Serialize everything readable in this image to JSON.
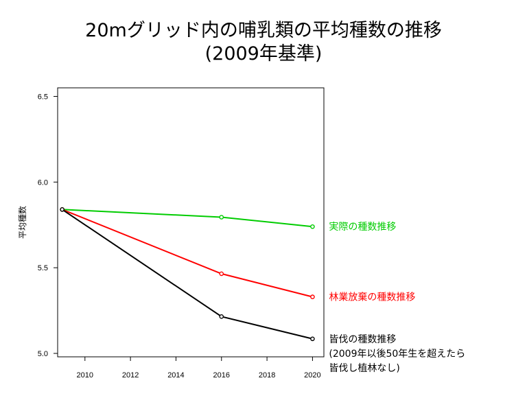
{
  "chart_data": {
    "type": "line",
    "title": "20mグリッド内の哺乳類の平均種数の推移",
    "subtitle": "(2009年基準)",
    "xlabel": "",
    "ylabel": "平均種数",
    "xlim": [
      2008.8,
      2020.5
    ],
    "ylim": [
      4.98,
      6.55
    ],
    "x_ticks": [
      2010,
      2012,
      2014,
      2016,
      2018,
      2020
    ],
    "y_ticks": [
      5.0,
      5.5,
      6.0,
      6.5
    ],
    "grid": false,
    "x": [
      2009,
      2016,
      2020
    ],
    "series": [
      {
        "name": "実際の種数推移",
        "label_lines": [
          "実際の種数推移"
        ],
        "color": "#00cc00",
        "values": [
          5.84,
          5.795,
          5.74
        ]
      },
      {
        "name": "林業放棄の種数推移",
        "label_lines": [
          "林業放棄の種数推移"
        ],
        "color": "#ff0000",
        "values": [
          5.84,
          5.465,
          5.33
        ]
      },
      {
        "name": "皆伐の種数推移",
        "label_lines": [
          "皆伐の種数推移",
          "(2009年以後50年生を超えたら",
          "皆伐し植林なし)"
        ],
        "color": "#000000",
        "values": [
          5.84,
          5.215,
          5.085
        ]
      }
    ]
  }
}
